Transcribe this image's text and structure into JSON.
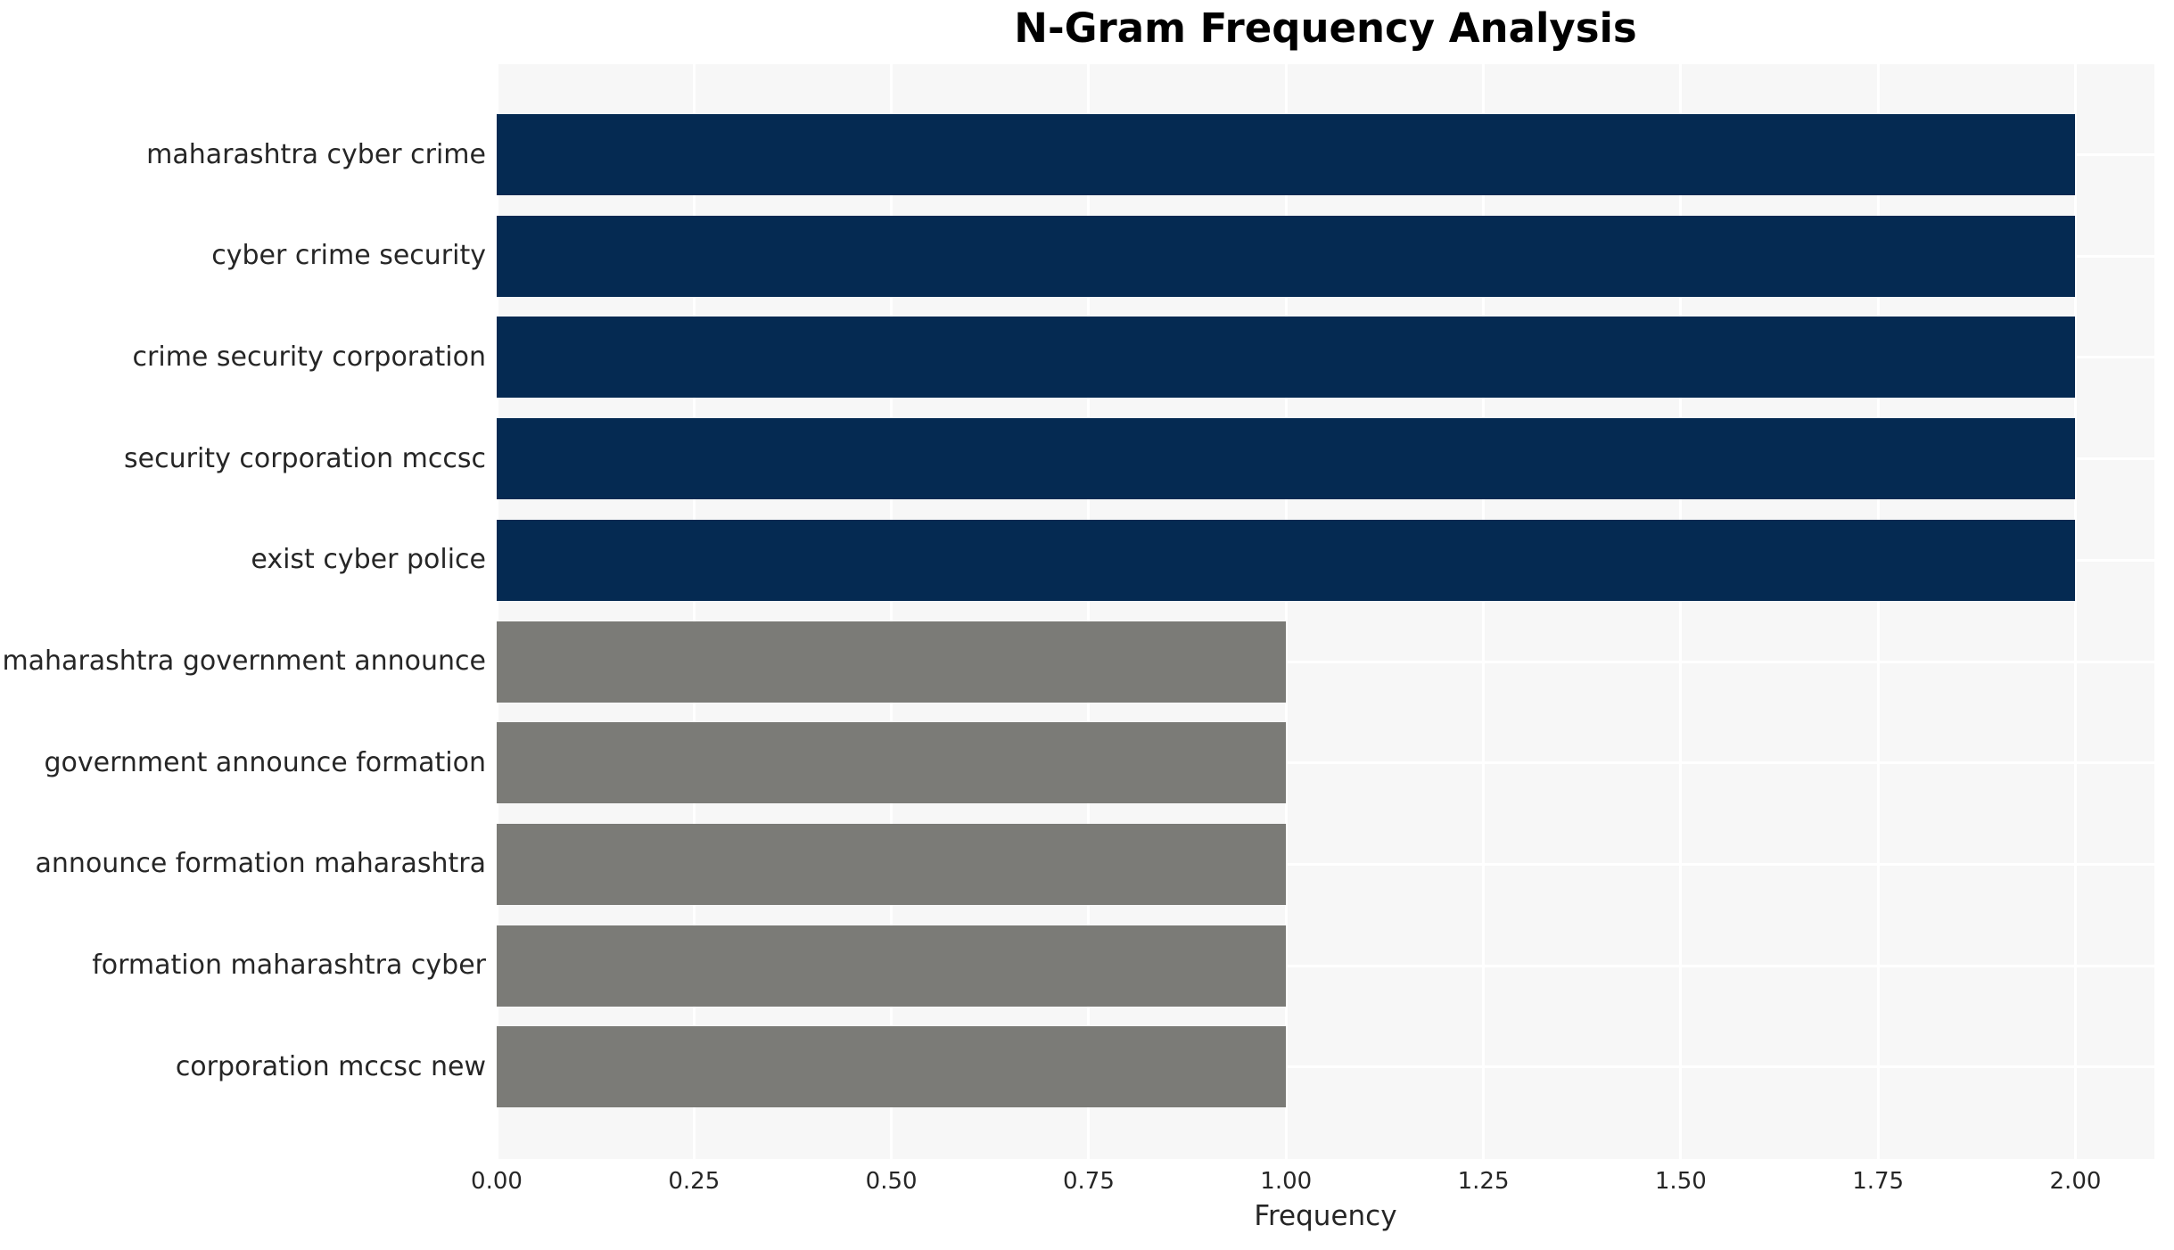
{
  "chart_data": {
    "type": "bar",
    "orientation": "horizontal",
    "title": "N-Gram Frequency Analysis",
    "xlabel": "Frequency",
    "ylabel": "",
    "categories": [
      "maharashtra cyber crime",
      "cyber crime security",
      "crime security corporation",
      "security corporation mccsc",
      "exist cyber police",
      "maharashtra government announce",
      "government announce formation",
      "announce formation maharashtra",
      "formation maharashtra cyber",
      "corporation mccsc new"
    ],
    "values": [
      2,
      2,
      2,
      2,
      2,
      1,
      1,
      1,
      1,
      1
    ],
    "xlim": [
      0,
      2.1
    ],
    "xticks": {
      "values": [
        0,
        0.25,
        0.5,
        0.75,
        1.0,
        1.25,
        1.5,
        1.75,
        2.0
      ],
      "labels": [
        "0.00",
        "0.25",
        "0.50",
        "0.75",
        "1.00",
        "1.25",
        "1.50",
        "1.75",
        "2.00"
      ]
    },
    "grid": "on",
    "legend": "none",
    "colors": {
      "bar_value_2": "#052a52",
      "bar_value_1": "#7b7b77",
      "plot_background": "#f7f7f7",
      "gridline": "#ffffff",
      "tick_text": "#262626",
      "title_text": "#000000"
    }
  }
}
